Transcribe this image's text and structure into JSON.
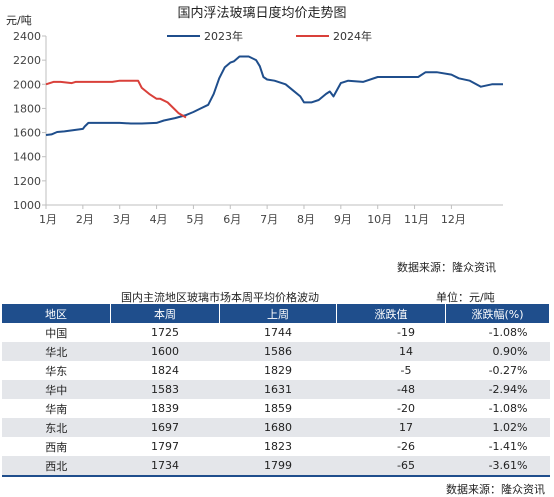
{
  "chart_data": {
    "type": "line",
    "title": "国内浮法玻璃日度均价走势图",
    "unit_label": "元/吨",
    "ylim": [
      1000,
      2400
    ],
    "yticks": [
      1000,
      1200,
      1400,
      1600,
      1800,
      2000,
      2200,
      2400
    ],
    "xticks": [
      "1月",
      "2月",
      "3月",
      "4月",
      "5月",
      "6月",
      "7月",
      "8月",
      "9月",
      "10月",
      "11月",
      "12月"
    ],
    "xlim": [
      0,
      12.4
    ],
    "legend_position": "top",
    "series": [
      {
        "name": "2023年",
        "color": "#1f4e8c",
        "x": [
          0,
          0.15,
          0.3,
          0.5,
          1.0,
          1.05,
          1.15,
          1.7,
          2.0,
          2.3,
          2.6,
          3.0,
          3.2,
          3.5,
          3.8,
          4.0,
          4.2,
          4.4,
          4.55,
          4.7,
          4.85,
          5.0,
          5.1,
          5.25,
          5.5,
          5.7,
          5.8,
          5.9,
          6.0,
          6.2,
          6.5,
          6.7,
          6.9,
          7.0,
          7.2,
          7.4,
          7.6,
          7.7,
          7.8,
          8.0,
          8.2,
          8.6,
          9.0,
          9.3,
          9.6,
          10.0,
          10.1,
          10.3,
          10.6,
          11.0,
          11.2,
          11.5,
          11.8,
          12.1,
          12.4
        ],
        "y": [
          1580,
          1585,
          1605,
          1610,
          1630,
          1650,
          1680,
          1680,
          1680,
          1675,
          1675,
          1680,
          1700,
          1720,
          1745,
          1770,
          1800,
          1830,
          1920,
          2050,
          2140,
          2180,
          2190,
          2230,
          2230,
          2200,
          2150,
          2060,
          2040,
          2030,
          2000,
          1950,
          1900,
          1850,
          1850,
          1870,
          1920,
          1940,
          1900,
          2010,
          2030,
          2020,
          2060,
          2060,
          2060,
          2060,
          2060,
          2100,
          2100,
          2080,
          2050,
          2030,
          1980,
          2000,
          2000
        ]
      },
      {
        "name": "2024年",
        "color": "#d9403a",
        "x": [
          0,
          0.2,
          0.4,
          0.7,
          0.8,
          1.0,
          1.5,
          1.8,
          2.0,
          2.5,
          2.6,
          2.8,
          3.0,
          3.1,
          3.3,
          3.5,
          3.6,
          3.8
        ],
        "y": [
          2000,
          2020,
          2020,
          2010,
          2020,
          2020,
          2020,
          2020,
          2030,
          2030,
          1970,
          1920,
          1880,
          1880,
          1850,
          1790,
          1760,
          1725
        ]
      }
    ]
  },
  "chart_source": "数据来源：隆众资讯",
  "table": {
    "title": "国内主流地区玻璃市场本周平均价格波动",
    "unit": "单位：元/吨",
    "headers": [
      "地区",
      "本周",
      "上周",
      "涨跌值",
      "涨跌幅(%)"
    ],
    "rows": [
      [
        "中国",
        "1725",
        "1744",
        "-19",
        "-1.08%"
      ],
      [
        "华北",
        "1600",
        "1586",
        "14",
        "0.90%"
      ],
      [
        "华东",
        "1824",
        "1829",
        "-5",
        "-0.27%"
      ],
      [
        "华中",
        "1583",
        "1631",
        "-48",
        "-2.94%"
      ],
      [
        "华南",
        "1839",
        "1859",
        "-20",
        "-1.08%"
      ],
      [
        "东北",
        "1697",
        "1680",
        "17",
        "1.02%"
      ],
      [
        "西南",
        "1797",
        "1823",
        "-26",
        "-1.41%"
      ],
      [
        "西北",
        "1734",
        "1799",
        "-65",
        "-3.61%"
      ]
    ],
    "source": "数据来源：隆众资讯"
  }
}
